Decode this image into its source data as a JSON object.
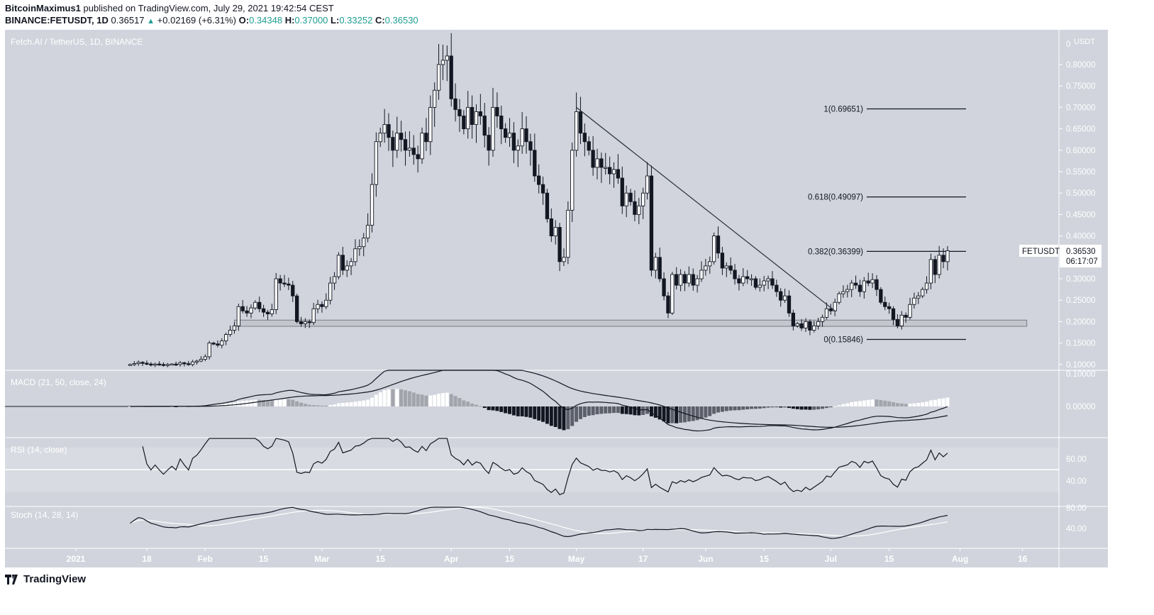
{
  "header": {
    "author": "BitcoinMaximus1",
    "published_text": "published on TradingView.com, July 29, 2021 19:42:54 CEST",
    "symbol": "BINANCE:FETUSDT, 1D",
    "last": "0.36517",
    "change": "+0.02169 (+6.31%)",
    "o_label": "O:",
    "o": "0.34348",
    "h_label": "H:",
    "h": "0.37000",
    "l_label": "L:",
    "l": "0.33252",
    "c_label": "C:",
    "c": "0.36530"
  },
  "chart_data": {
    "type": "candlestick",
    "title": "Fetch.AI / TetherUS, 1D, BINANCE",
    "interval": "1D",
    "first_date": "2021-01-14",
    "close": [
      0.1,
      0.102,
      0.105,
      0.103,
      0.101,
      0.1,
      0.101,
      0.1,
      0.099,
      0.1,
      0.101,
      0.1,
      0.104,
      0.102,
      0.1,
      0.106,
      0.108,
      0.112,
      0.118,
      0.15,
      0.148,
      0.145,
      0.155,
      0.17,
      0.18,
      0.19,
      0.235,
      0.225,
      0.22,
      0.232,
      0.245,
      0.23,
      0.222,
      0.218,
      0.228,
      0.3,
      0.29,
      0.288,
      0.285,
      0.26,
      0.2,
      0.195,
      0.2,
      0.198,
      0.23,
      0.24,
      0.235,
      0.25,
      0.29,
      0.305,
      0.355,
      0.32,
      0.33,
      0.34,
      0.37,
      0.375,
      0.395,
      0.425,
      0.52,
      0.62,
      0.64,
      0.66,
      0.63,
      0.6,
      0.64,
      0.625,
      0.6,
      0.605,
      0.59,
      0.58,
      0.64,
      0.62,
      0.7,
      0.74,
      0.8,
      0.81,
      0.82,
      0.72,
      0.695,
      0.68,
      0.65,
      0.7,
      0.66,
      0.69,
      0.68,
      0.635,
      0.6,
      0.7,
      0.68,
      0.65,
      0.63,
      0.64,
      0.6,
      0.61,
      0.65,
      0.62,
      0.6,
      0.54,
      0.52,
      0.5,
      0.44,
      0.4,
      0.42,
      0.34,
      0.35,
      0.46,
      0.6,
      0.69,
      0.64,
      0.62,
      0.6,
      0.56,
      0.58,
      0.56,
      0.56,
      0.545,
      0.555,
      0.535,
      0.47,
      0.5,
      0.48,
      0.45,
      0.47,
      0.5,
      0.54,
      0.32,
      0.35,
      0.3,
      0.26,
      0.22,
      0.31,
      0.285,
      0.31,
      0.29,
      0.31,
      0.285,
      0.3,
      0.32,
      0.33,
      0.34,
      0.4,
      0.36,
      0.325,
      0.33,
      0.32,
      0.3,
      0.29,
      0.305,
      0.3,
      0.3,
      0.28,
      0.285,
      0.295,
      0.3,
      0.285,
      0.27,
      0.25,
      0.26,
      0.22,
      0.19,
      0.195,
      0.185,
      0.2,
      0.18,
      0.19,
      0.2,
      0.21,
      0.23,
      0.225,
      0.245,
      0.265,
      0.27,
      0.275,
      0.29,
      0.285,
      0.27,
      0.295,
      0.29,
      0.298,
      0.275,
      0.245,
      0.235,
      0.23,
      0.205,
      0.19,
      0.215,
      0.21,
      0.24,
      0.255,
      0.26,
      0.275,
      0.29,
      0.345,
      0.31,
      0.355,
      0.34,
      0.3653
    ],
    "price_axis": {
      "unit": "USDT",
      "top_label": "0",
      "ticks": [
        "0.80000",
        "0.75000",
        "0.70000",
        "0.65000",
        "0.60000",
        "0.55000",
        "0.50000",
        "0.45000",
        "0.40000",
        "0.30000",
        "0.25000",
        "0.20000",
        "0.15000",
        "0.10000"
      ]
    },
    "ylim": [
      0.09,
      0.85
    ],
    "last_price": {
      "symbol": "FETUSDT",
      "value": "0.36530",
      "countdown": "06:17:07"
    },
    "fibonacci": [
      {
        "label": "1(0.69651)",
        "price": 0.69651
      },
      {
        "label": "0.618(0.49097)",
        "price": 0.49097
      },
      {
        "label": "0.382(0.36399)",
        "price": 0.36399
      },
      {
        "label": "0(0.15846)",
        "price": 0.15846
      }
    ],
    "trendline": [
      {
        "date": "2021-05-01",
        "price": 0.7
      },
      {
        "date": "2021-07-02",
        "price": 0.225
      }
    ],
    "support_zone": {
      "from": "2021-02-08",
      "to": "2021-08-17",
      "low": 0.189,
      "high": 0.2035
    },
    "x_ticks": [
      {
        "date": "2021-01-01",
        "label": "2021"
      },
      {
        "date": "2021-01-18",
        "label": "18"
      },
      {
        "date": "2021-02-01",
        "label": "Feb"
      },
      {
        "date": "2021-02-15",
        "label": "15"
      },
      {
        "date": "2021-03-01",
        "label": "Mar"
      },
      {
        "date": "2021-03-15",
        "label": "15"
      },
      {
        "date": "2021-04-01",
        "label": "Apr"
      },
      {
        "date": "2021-04-15",
        "label": "15"
      },
      {
        "date": "2021-05-01",
        "label": "May"
      },
      {
        "date": "2021-05-17",
        "label": "17"
      },
      {
        "date": "2021-06-01",
        "label": "Jun"
      },
      {
        "date": "2021-06-15",
        "label": "15"
      },
      {
        "date": "2021-07-01",
        "label": "Jul"
      },
      {
        "date": "2021-07-15",
        "label": "15"
      },
      {
        "date": "2021-08-01",
        "label": "Aug"
      },
      {
        "date": "2021-08-16",
        "label": "16"
      }
    ],
    "indicators": {
      "macd": {
        "label": "MACD (21, 50, close, 24)",
        "ticks": [
          "0.10000",
          "0.00000"
        ]
      },
      "rsi": {
        "label": "RSI (14, close)",
        "ticks": [
          "60.00",
          "40.00"
        ]
      },
      "stoch": {
        "label": "Stoch (14, 28, 14)",
        "ticks": [
          "80.00",
          "40.00"
        ]
      }
    },
    "colors": {
      "background": "#d1d4dc",
      "up": "#ffffff",
      "down": "#131722",
      "text_axis": "#ffffff"
    }
  },
  "footer": {
    "brand": "TradingView"
  }
}
